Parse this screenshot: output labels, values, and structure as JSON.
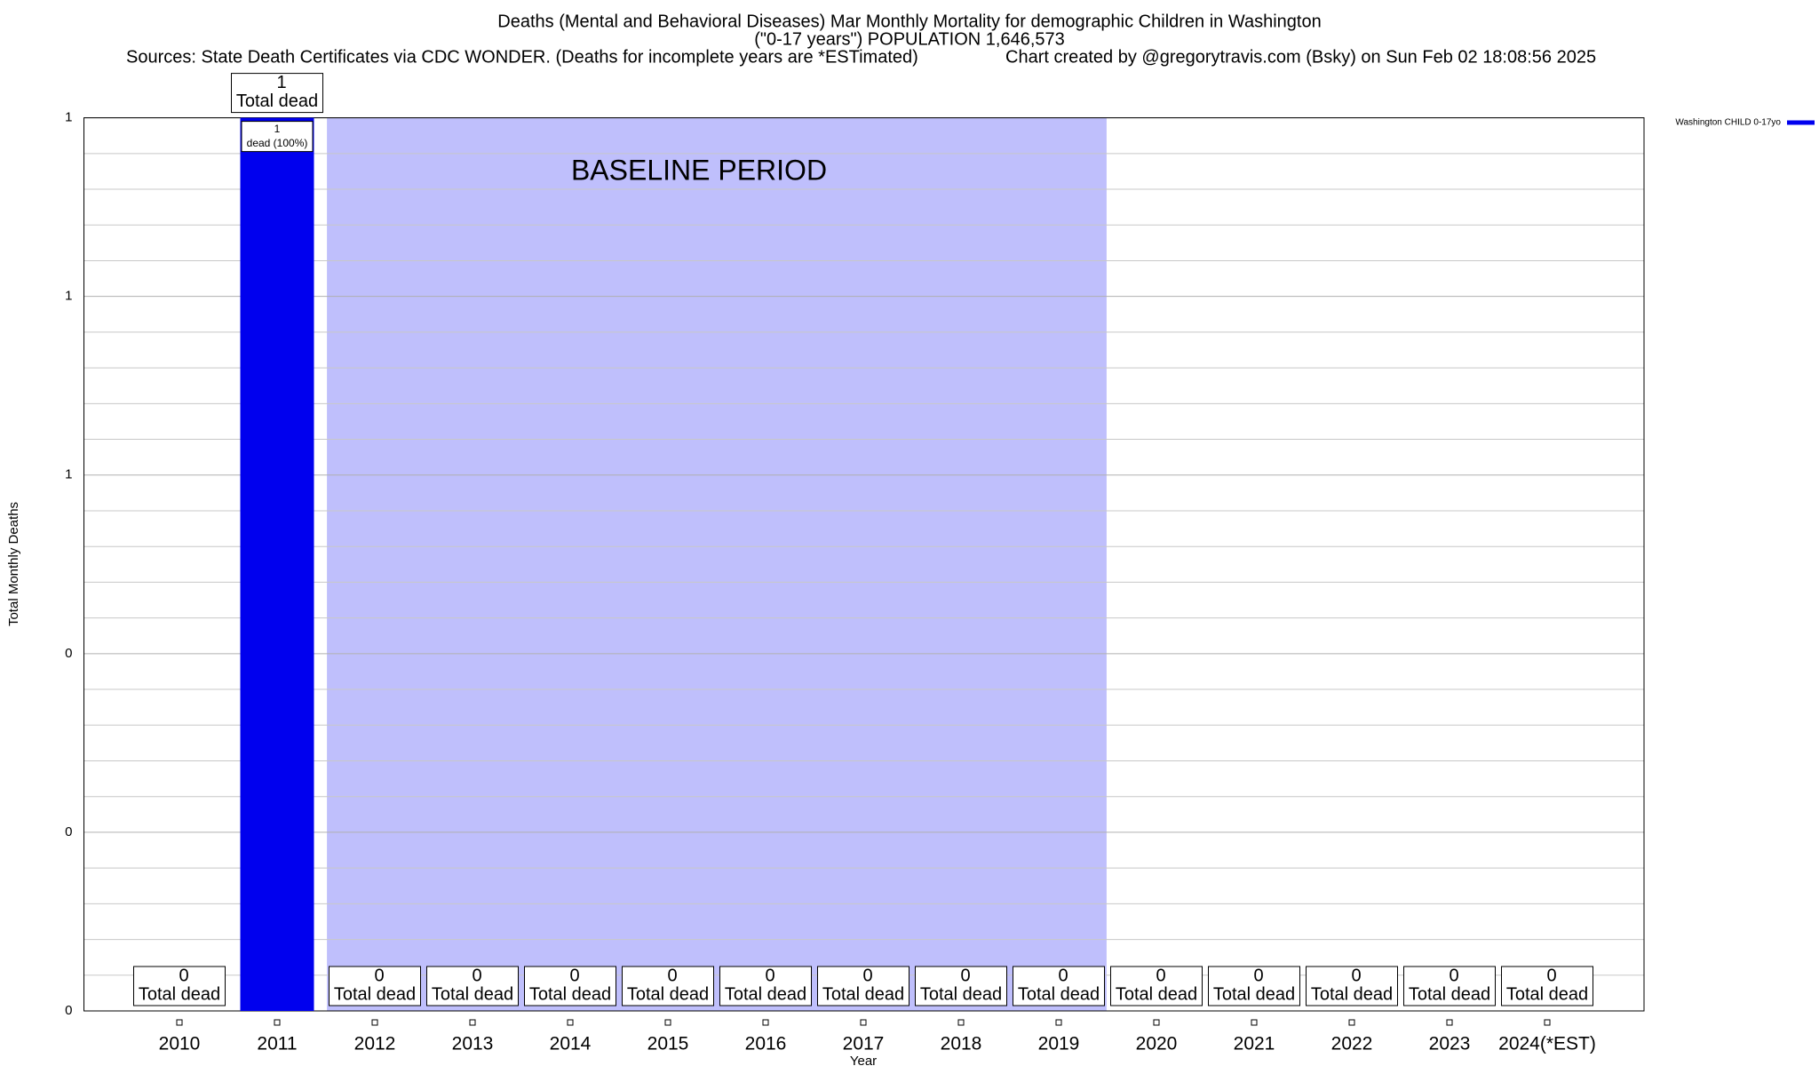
{
  "chart_data": {
    "type": "bar",
    "title": "Deaths (Mental and Behavioral Diseases) Mar Monthly Mortality for demographic Children in Washington",
    "subtitle": "(\"0-17 years\") POPULATION 1,646,573",
    "source": "Sources: State Death Certificates via CDC WONDER. (Deaths for incomplete years are *ESTimated)",
    "credit": "Chart created by @gregorytravis.com (Bsky) on Sun Feb 02 18:08:56 2025",
    "xlabel": "Year",
    "ylabel": "Total Monthly Deaths",
    "categories": [
      "2010",
      "2011",
      "2012",
      "2013",
      "2014",
      "2015",
      "2016",
      "2017",
      "2018",
      "2019",
      "2020",
      "2021",
      "2022",
      "2023",
      "2024(*EST)"
    ],
    "series": [
      {
        "name": "Washington CHILD 0-17yo",
        "color": "#0000ee",
        "values": [
          0,
          1,
          0,
          0,
          0,
          0,
          0,
          0,
          0,
          0,
          0,
          0,
          0,
          0,
          0
        ]
      }
    ],
    "total_label": "Total dead",
    "inner_labels": [
      null,
      "dead (100%)",
      null,
      null,
      null,
      null,
      null,
      null,
      null,
      null,
      null,
      null,
      null,
      null,
      null
    ],
    "shade": {
      "label": "BASELINE PERIOD",
      "from": "2012",
      "to": "2019",
      "color": "#bfbffc"
    },
    "ylim": [
      0,
      1
    ],
    "yticks": [
      0,
      {
        "value": 0.2,
        "label": "0"
      },
      {
        "value": 0.4,
        "label": "0"
      },
      {
        "value": 0.6,
        "label": "1"
      },
      {
        "value": 0.8,
        "label": "1"
      },
      1
    ],
    "minor_yticks": [
      0.04,
      0.08,
      0.12,
      0.16,
      0.24,
      0.28,
      0.32,
      0.36,
      0.44,
      0.48,
      0.52,
      0.56,
      0.64,
      0.68,
      0.72,
      0.76,
      0.84,
      0.88,
      0.92,
      0.96
    ],
    "grid": true,
    "legend": "top-right"
  }
}
